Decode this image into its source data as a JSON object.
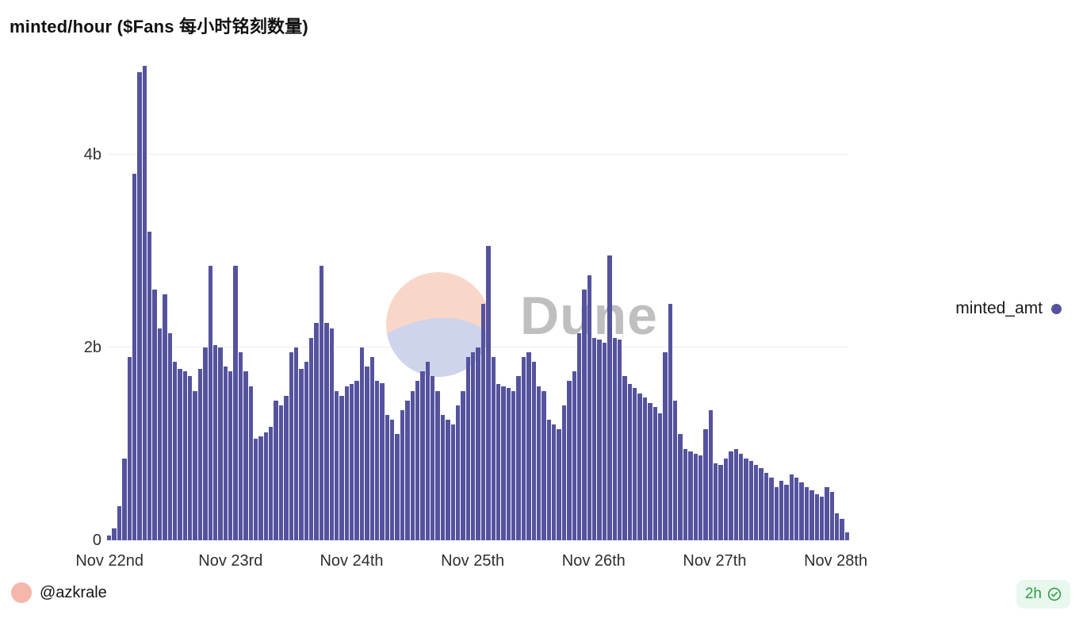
{
  "header": {
    "title": "minted/hour ($Fans 每小时铭刻数量)"
  },
  "legend": {
    "label": "minted_amt"
  },
  "watermark": {
    "text": "Dune"
  },
  "footer": {
    "author": "@azkrale",
    "refresh_interval": "2h"
  },
  "colors": {
    "bar": "#55539e",
    "title_text": "#101010",
    "axis_text": "#2e2e2e",
    "watermark_text": "#bfbfbf",
    "watermark_peach": "#f9d7c8",
    "watermark_lavender": "#cdd4eb",
    "avatar_pink": "#f4b7aa",
    "refresh_green": "#2f9e44",
    "refresh_bg": "#e9f8ee"
  },
  "chart_data": {
    "type": "bar",
    "title": "minted/hour ($Fans 每小时铭刻数量)",
    "xlabel": "",
    "ylabel": "",
    "y_unit": "billions",
    "ylim": [
      0,
      5.1
    ],
    "grid": "horizontal",
    "legend_position": "right",
    "bar_color": "#55539e",
    "x_tick_every": 24,
    "x_tick_labels": [
      "Nov 22nd",
      "Nov 23rd",
      "Nov 24th",
      "Nov 25th",
      "Nov 26th",
      "Nov 27th",
      "Nov 28th"
    ],
    "y_ticks": [
      {
        "value": 0,
        "label": "0"
      },
      {
        "value": 2,
        "label": "2b"
      },
      {
        "value": 4,
        "label": "4b"
      }
    ],
    "series": [
      {
        "name": "minted_amt",
        "values_unit": "billions (estimated from pixels, hourly)",
        "values": [
          0.05,
          0.12,
          0.35,
          0.85,
          1.9,
          3.8,
          4.85,
          4.92,
          3.2,
          2.6,
          2.2,
          2.55,
          2.15,
          1.85,
          1.78,
          1.75,
          1.7,
          1.55,
          1.78,
          2.0,
          2.85,
          2.02,
          2.0,
          1.8,
          1.75,
          2.85,
          1.95,
          1.75,
          1.6,
          1.05,
          1.08,
          1.12,
          1.18,
          1.45,
          1.4,
          1.5,
          1.95,
          2.0,
          1.78,
          1.85,
          2.1,
          2.25,
          2.85,
          2.25,
          2.2,
          1.55,
          1.5,
          1.6,
          1.62,
          1.65,
          2.0,
          1.8,
          1.9,
          1.65,
          1.63,
          1.3,
          1.25,
          1.1,
          1.35,
          1.45,
          1.55,
          1.65,
          1.75,
          1.85,
          1.7,
          1.55,
          1.3,
          1.25,
          1.2,
          1.4,
          1.55,
          1.9,
          1.95,
          2.0,
          2.45,
          3.05,
          1.9,
          1.62,
          1.6,
          1.58,
          1.55,
          1.7,
          1.9,
          1.95,
          1.85,
          1.6,
          1.55,
          1.25,
          1.2,
          1.15,
          1.4,
          1.65,
          1.75,
          2.15,
          2.6,
          2.75,
          2.1,
          2.08,
          2.05,
          2.95,
          2.1,
          2.08,
          1.7,
          1.62,
          1.58,
          1.52,
          1.48,
          1.42,
          1.38,
          1.32,
          1.95,
          2.45,
          1.45,
          1.1,
          0.95,
          0.92,
          0.9,
          0.88,
          1.15,
          1.35,
          0.8,
          0.78,
          0.85,
          0.92,
          0.95,
          0.9,
          0.85,
          0.82,
          0.78,
          0.75,
          0.7,
          0.65,
          0.55,
          0.62,
          0.58,
          0.68,
          0.65,
          0.6,
          0.55,
          0.52,
          0.48,
          0.45,
          0.55,
          0.5,
          0.28,
          0.22,
          0.08
        ]
      }
    ]
  }
}
